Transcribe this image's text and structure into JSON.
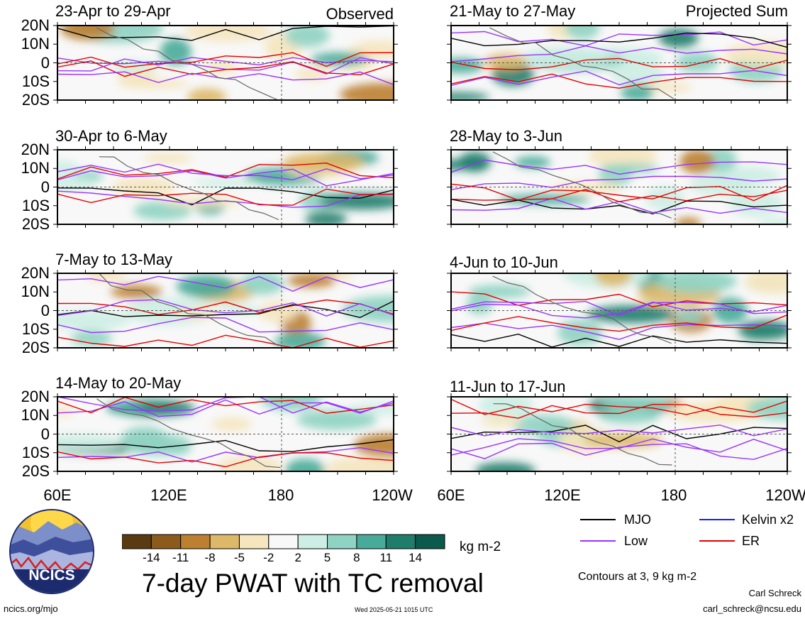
{
  "panels": [
    {
      "date_range": "23-Apr to 29-Apr",
      "tag": "Observed"
    },
    {
      "date_range": "21-May to 27-May",
      "tag": "Projected Sum"
    },
    {
      "date_range": "30-Apr to 6-May",
      "tag": ""
    },
    {
      "date_range": "28-May to 3-Jun",
      "tag": ""
    },
    {
      "date_range": "7-May to 13-May",
      "tag": ""
    },
    {
      "date_range": "4-Jun to 10-Jun",
      "tag": ""
    },
    {
      "date_range": "14-May to 20-May",
      "tag": ""
    },
    {
      "date_range": "11-Jun to 17-Jun",
      "tag": ""
    }
  ],
  "lat_labels": [
    "20N",
    "10N",
    "0",
    "10S",
    "20S"
  ],
  "lon_labels": [
    "60E",
    "120E",
    "180",
    "120W"
  ],
  "colorbar": {
    "ticks": [
      "-14",
      "-11",
      "-8",
      "-5",
      "-2",
      "2",
      "5",
      "8",
      "11",
      "14"
    ],
    "colors": [
      "#5a3a10",
      "#8c5a1a",
      "#bd8030",
      "#ddb868",
      "#f5e6be",
      "#f8f8f8",
      "#cdeee4",
      "#8fd3c2",
      "#48ab99",
      "#1f7d6c",
      "#0c5a4c",
      "#053a30"
    ],
    "units": "kg m-2"
  },
  "title": "7-day PWAT with TC removal",
  "legend": [
    {
      "label": "MJO",
      "color": "#000000"
    },
    {
      "label": "Kelvin x2",
      "color": "#1a1aff"
    },
    {
      "label": "Low",
      "color": "#9933ff"
    },
    {
      "label": "ER",
      "color": "#e60000"
    }
  ],
  "logo_text": "NCICS",
  "contour_note": "Contours at 3, 9 kg m-2",
  "author": "Carl Schreck",
  "email": "carl_schreck@ncsu.edu",
  "website": "ncics.org/mjo",
  "timestamp": "Wed 2025-05-21 1015 UTC"
}
